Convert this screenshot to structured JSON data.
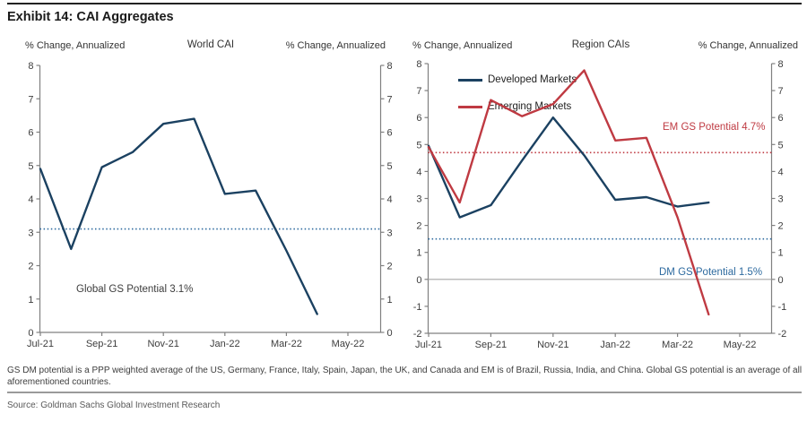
{
  "header": {
    "title": "Exhibit 14: CAI Aggregates"
  },
  "colors": {
    "navy": "#1b4161",
    "red": "#bf3a42",
    "dotted_blue": "#2d6a9f",
    "axis": "#808080",
    "zero_line": "#a6a6a6",
    "text": "#3d3d3d"
  },
  "chart_data": [
    {
      "type": "line",
      "title": "World CAI",
      "ylabel_left": "% Change, Annualized",
      "ylabel_right": "% Change, Annualized",
      "categories": [
        "Jul-21",
        "Aug-21",
        "Sep-21",
        "Oct-21",
        "Nov-21",
        "Dec-21",
        "Jan-22",
        "Feb-22",
        "Mar-22",
        "Apr-22",
        "May-22"
      ],
      "x_tick_step": 2,
      "ylim": [
        0,
        8
      ],
      "grid": false,
      "zero_line": false,
      "series": [
        {
          "name": "World CAI",
          "color": "#1b4161",
          "values": [
            4.9,
            2.5,
            4.95,
            5.4,
            6.25,
            6.4,
            4.15,
            4.25,
            2.45,
            0.55,
            null
          ]
        }
      ],
      "ref_lines": [
        {
          "label": "Global GS Potential 3.1%",
          "value": 3.1,
          "color": "#2d6a9f",
          "label_color": "#3d3d3d"
        }
      ]
    },
    {
      "type": "line",
      "title": "Region CAIs",
      "ylabel_left": "% Change, Annualized",
      "ylabel_right": "% Change, Annualized",
      "categories": [
        "Jul-21",
        "Aug-21",
        "Sep-21",
        "Oct-21",
        "Nov-21",
        "Dec-21",
        "Jan-22",
        "Feb-22",
        "Mar-22",
        "Apr-22",
        "May-22"
      ],
      "x_tick_step": 2,
      "ylim": [
        -2,
        8
      ],
      "grid": false,
      "zero_line": true,
      "legend_position": "top-left",
      "series": [
        {
          "name": "Developed Markets",
          "color": "#1b4161",
          "values": [
            4.95,
            2.3,
            2.75,
            4.4,
            6.0,
            4.6,
            2.95,
            3.05,
            2.7,
            2.85,
            null
          ]
        },
        {
          "name": "Emerging Markets",
          "color": "#bf3a42",
          "values": [
            4.9,
            2.85,
            6.65,
            6.05,
            6.5,
            7.75,
            5.15,
            5.25,
            2.3,
            -1.3,
            null
          ]
        }
      ],
      "ref_lines": [
        {
          "label": "EM GS Potential 4.7%",
          "value": 4.7,
          "color": "#bf3a42",
          "label_color": "#bf3a42"
        },
        {
          "label": "DM GS Potential 1.5%",
          "value": 1.5,
          "color": "#2d6a9f",
          "label_color": "#2d6a9f"
        }
      ]
    }
  ],
  "footer": {
    "note": "GS DM potential is a PPP weighted average of the US, Germany, France, Italy, Spain, Japan, the UK, and Canada and EM is of Brazil, Russia, India, and China. Global GS potential is an average of all aforementioned countries.",
    "source": "Source: Goldman Sachs Global Investment Research"
  }
}
